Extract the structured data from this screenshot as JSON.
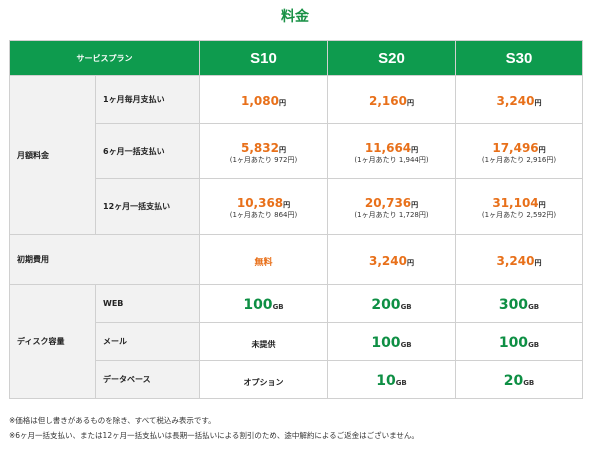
{
  "title": "料金",
  "header": {
    "plan_label": "サービスプラン",
    "columns": [
      "S10",
      "S20",
      "S30"
    ]
  },
  "monthly": {
    "category": "月額料金",
    "rows": [
      {
        "label": "1ヶ月毎月支払い",
        "cells": [
          {
            "price": "1,080",
            "unit": "円",
            "note": ""
          },
          {
            "price": "2,160",
            "unit": "円",
            "note": ""
          },
          {
            "price": "3,240",
            "unit": "円",
            "note": ""
          }
        ]
      },
      {
        "label": "6ヶ月一括支払い",
        "cells": [
          {
            "price": "5,832",
            "unit": "円",
            "note": "(1ヶ月あたり 972円)"
          },
          {
            "price": "11,664",
            "unit": "円",
            "note": "(1ヶ月あたり 1,944円)"
          },
          {
            "price": "17,496",
            "unit": "円",
            "note": "(1ヶ月あたり 2,916円)"
          }
        ]
      },
      {
        "label": "12ヶ月一括支払い",
        "cells": [
          {
            "price": "10,368",
            "unit": "円",
            "note": "(1ヶ月あたり 864円)"
          },
          {
            "price": "20,736",
            "unit": "円",
            "note": "(1ヶ月あたり 1,728円)"
          },
          {
            "price": "31,104",
            "unit": "円",
            "note": "(1ヶ月あたり 2,592円)"
          }
        ]
      }
    ]
  },
  "initial": {
    "label": "初期費用",
    "cells": [
      {
        "text": "無料"
      },
      {
        "price": "3,240",
        "unit": "円"
      },
      {
        "price": "3,240",
        "unit": "円"
      }
    ]
  },
  "disk": {
    "category": "ディスク容量",
    "rows": [
      {
        "label": "WEB",
        "cells": [
          {
            "value": "100",
            "unit": "GB"
          },
          {
            "value": "200",
            "unit": "GB"
          },
          {
            "value": "300",
            "unit": "GB"
          }
        ]
      },
      {
        "label": "メール",
        "cells": [
          {
            "text": "未提供"
          },
          {
            "value": "100",
            "unit": "GB"
          },
          {
            "value": "100",
            "unit": "GB"
          }
        ]
      },
      {
        "label": "データベース",
        "cells": [
          {
            "text": "オプション"
          },
          {
            "value": "10",
            "unit": "GB"
          },
          {
            "value": "20",
            "unit": "GB"
          }
        ]
      }
    ]
  },
  "footnotes": [
    "※価格は但し書きがあるものを除き、すべて税込み表示です。",
    "※6ヶ月一括支払い、または12ヶ月一括支払いは長期一括払いによる割引のため、途中解約によるご返金はございません。"
  ]
}
